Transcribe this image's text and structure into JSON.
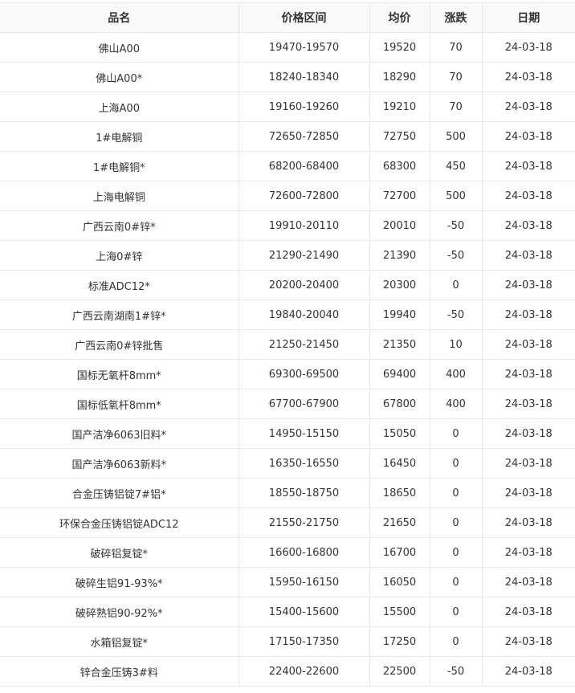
{
  "table": {
    "headers": [
      "品名",
      "价格区间",
      "均价",
      "涨跌",
      "日期"
    ],
    "rows": [
      [
        "佛山A00",
        "19470-19570",
        "19520",
        "70",
        "24-03-18"
      ],
      [
        "佛山A00*",
        "18240-18340",
        "18290",
        "70",
        "24-03-18"
      ],
      [
        "上海A00",
        "19160-19260",
        "19210",
        "70",
        "24-03-18"
      ],
      [
        "1#电解铜",
        "72650-72850",
        "72750",
        "500",
        "24-03-18"
      ],
      [
        "1#电解铜*",
        "68200-68400",
        "68300",
        "450",
        "24-03-18"
      ],
      [
        "上海电解铜",
        "72600-72800",
        "72700",
        "500",
        "24-03-18"
      ],
      [
        "广西云南0#锌*",
        "19910-20110",
        "20010",
        "-50",
        "24-03-18"
      ],
      [
        "上海0#锌",
        "21290-21490",
        "21390",
        "-50",
        "24-03-18"
      ],
      [
        "标准ADC12*",
        "20200-20400",
        "20300",
        "0",
        "24-03-18"
      ],
      [
        "广西云南湖南1#锌*",
        "19840-20040",
        "19940",
        "-50",
        "24-03-18"
      ],
      [
        "广西云南0#锌批售",
        "21250-21450",
        "21350",
        "10",
        "24-03-18"
      ],
      [
        "国标无氧杆8mm*",
        "69300-69500",
        "69400",
        "400",
        "24-03-18"
      ],
      [
        "国标低氧杆8mm*",
        "67700-67900",
        "67800",
        "400",
        "24-03-18"
      ],
      [
        "国产洁净6063旧料*",
        "14950-15150",
        "15050",
        "0",
        "24-03-18"
      ],
      [
        "国产洁净6063新料*",
        "16350-16550",
        "16450",
        "0",
        "24-03-18"
      ],
      [
        "合金压铸铝锭7#铝*",
        "18550-18750",
        "18650",
        "0",
        "24-03-18"
      ],
      [
        "环保合金压铸铝锭ADC12",
        "21550-21750",
        "21650",
        "0",
        "24-03-18"
      ],
      [
        "破碎铝复锭*",
        "16600-16800",
        "16700",
        "0",
        "24-03-18"
      ],
      [
        "破碎生铝91-93%*",
        "15950-16150",
        "16050",
        "0",
        "24-03-18"
      ],
      [
        "破碎熟铝90-92%*",
        "15400-15600",
        "15500",
        "0",
        "24-03-18"
      ],
      [
        "水箱铝复锭*",
        "17150-17350",
        "17250",
        "0",
        "24-03-18"
      ],
      [
        "锌合金压铸3#料",
        "22400-22600",
        "22500",
        "-50",
        "24-03-18"
      ]
    ]
  }
}
